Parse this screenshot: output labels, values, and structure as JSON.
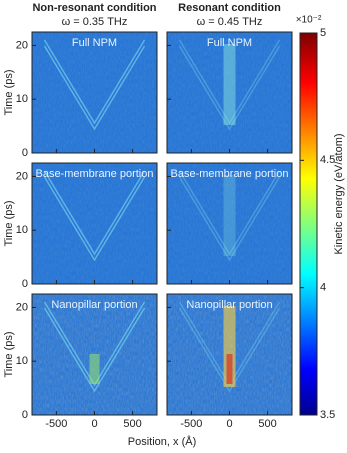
{
  "chart_data": {
    "type": "heatmap",
    "columns": [
      "Non-resonant condition",
      "Resonant condition"
    ],
    "subtitles": [
      "ω = 0.35 THz",
      "ω = 0.45 THz"
    ],
    "rows": [
      "Full NPM",
      "Base-membrane portion",
      "Nanopillar portion"
    ],
    "xlabel": "Position, x (Å)",
    "ylabel": "Time (ps)",
    "xlim": [
      -820,
      820
    ],
    "xticks": [
      -500,
      0,
      500
    ],
    "ylim": [
      0,
      22.5
    ],
    "yticks": [
      0,
      10,
      20
    ],
    "colorbar_label": "Kinetic energy (eV/atom)",
    "colorbar_scale": "×10⁻²",
    "clim": [
      3.5,
      5
    ],
    "cticks": [
      3.5,
      4,
      4.5,
      5
    ],
    "colormap": "jet"
  }
}
